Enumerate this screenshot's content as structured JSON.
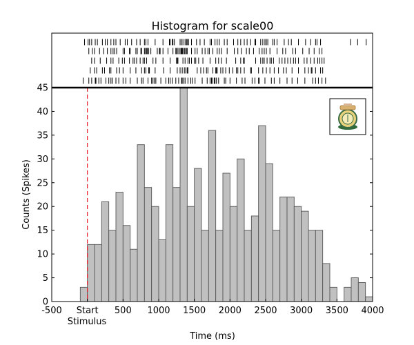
{
  "chart_data": {
    "type": "bar",
    "title": "Histogram for scale00",
    "xlabel": "Time (ms)",
    "ylabel": "Counts (Spikes)",
    "xlim": [
      -500,
      4000
    ],
    "ylim": [
      0,
      45
    ],
    "bin_width": 100,
    "bin_starts": [
      -100,
      0,
      100,
      200,
      300,
      400,
      500,
      600,
      700,
      800,
      900,
      1000,
      1100,
      1200,
      1300,
      1400,
      1500,
      1600,
      1700,
      1800,
      1900,
      2000,
      2100,
      2200,
      2300,
      2400,
      2500,
      2600,
      2700,
      2800,
      2900,
      3000,
      3100,
      3200,
      3300,
      3400,
      3500,
      3600,
      3700,
      3800,
      3900
    ],
    "values": [
      3,
      12,
      12,
      21,
      15,
      23,
      16,
      11,
      33,
      24,
      20,
      13,
      33,
      24,
      45,
      20,
      28,
      15,
      36,
      15,
      27,
      20,
      30,
      15,
      18,
      37,
      29,
      15,
      22,
      22,
      20,
      19,
      15,
      15,
      8,
      3,
      0,
      3,
      5,
      4,
      1
    ],
    "x_ticks": [
      -500,
      0,
      500,
      1000,
      1500,
      2000,
      2500,
      3000,
      3500,
      4000
    ],
    "x_tick_labels": [
      "-500",
      "Start",
      "500",
      "1000",
      "1500",
      "2000",
      "2500",
      "3000",
      "3500",
      "4000"
    ],
    "x_sublabel": "Stimulus",
    "y_ticks": [
      0,
      5,
      10,
      15,
      20,
      25,
      30,
      35,
      40,
      45
    ],
    "stimulus_marker": {
      "x": 0,
      "color": "#e8202a",
      "style": "dashed"
    },
    "bar_fill": "#c0c0c0",
    "bar_edge": "#555555",
    "raster": {
      "rows": [
        [
          -40,
          10,
          30,
          60,
          110,
          140,
          210,
          250,
          280,
          330,
          370,
          400,
          460,
          530,
          560,
          620,
          690,
          740,
          800,
          820,
          850,
          950,
          1060,
          1150,
          1160,
          1190,
          1200,
          1220,
          1300,
          1320,
          1340,
          1370,
          1390,
          1400,
          1420,
          1460,
          1530,
          1580,
          1640,
          1720,
          1740,
          1790,
          1820,
          1850,
          1920,
          1960,
          2050,
          2110,
          2150,
          2200,
          2240,
          2290,
          2350,
          2360,
          2430,
          2460,
          2490,
          2510,
          2530,
          2600,
          2620,
          2660,
          2760,
          2820,
          2860,
          2960,
          3060,
          3130,
          3200,
          3220,
          3270,
          3690,
          3790,
          3910
        ],
        [
          20,
          70,
          100,
          170,
          230,
          280,
          330,
          360,
          380,
          410,
          500,
          520,
          590,
          600,
          680,
          700,
          750,
          760,
          800,
          810,
          830,
          840,
          860,
          890,
          980,
          1010,
          1020,
          1060,
          1130,
          1200,
          1240,
          1250,
          1270,
          1290,
          1310,
          1320,
          1330,
          1340,
          1360,
          1370,
          1390,
          1400,
          1460,
          1510,
          1540,
          1610,
          1650,
          1690,
          1710,
          1760,
          1820,
          1850,
          1880,
          1960,
          2060,
          2110,
          2160,
          2230,
          2270,
          2330,
          2410,
          2450,
          2480,
          2510,
          2560,
          2660,
          2740,
          2780,
          2880,
          2920,
          3020,
          3110,
          3180,
          3250,
          3290
        ],
        [
          60,
          100,
          180,
          270,
          330,
          360,
          440,
          490,
          520,
          590,
          640,
          660,
          690,
          740,
          780,
          800,
          830,
          920,
          960,
          1060,
          1160,
          1250,
          1260,
          1270,
          1340,
          1370,
          1410,
          1430,
          1460,
          1500,
          1520,
          1560,
          1620,
          1720,
          1800,
          1840,
          1880,
          1950,
          2080,
          2150,
          2190,
          2200,
          2360,
          2430,
          2460,
          2480,
          2520,
          2560,
          2580,
          2610,
          2690,
          2730,
          2770,
          2810,
          2850,
          2890,
          2920,
          2960,
          3040,
          3080,
          3130,
          3180,
          3230,
          3260,
          3290,
          3320
        ],
        [
          40,
          100,
          130,
          210,
          240,
          310,
          330,
          410,
          450,
          500,
          600,
          680,
          760,
          800,
          820,
          860,
          870,
          950,
          1070,
          1160,
          1260,
          1300,
          1330,
          1360,
          1380,
          1400,
          1410,
          1540,
          1590,
          1630,
          1670,
          1690,
          1760,
          1800,
          1810,
          1820,
          1870,
          1900,
          1940,
          1990,
          2040,
          2090,
          2110,
          2150,
          2200,
          2290,
          2300,
          2400,
          2460,
          2510,
          2560,
          2620,
          2680,
          2750,
          2790,
          2870,
          2960,
          3050,
          3100,
          3140,
          3150,
          3200,
          3270,
          3300
        ],
        [
          -60,
          20,
          60,
          110,
          120,
          160,
          190,
          260,
          300,
          330,
          350,
          400,
          440,
          500,
          540,
          600,
          700,
          760,
          780,
          850,
          900,
          920,
          940,
          960,
          1030,
          1100,
          1140,
          1160,
          1190,
          1240,
          1280,
          1320,
          1330,
          1350,
          1370,
          1410,
          1450,
          1470,
          1510,
          1610,
          1680,
          1720,
          1740,
          1760,
          1780,
          1790,
          1810,
          1840,
          1920,
          1940,
          2000,
          2090,
          2170,
          2210,
          2310,
          2350,
          2400,
          2410,
          2490,
          2580,
          2620,
          2700,
          2800,
          2870,
          2950,
          3050,
          3160,
          3200,
          3240,
          3290,
          3340
        ]
      ]
    },
    "logo": "scale-emblem-icon"
  }
}
